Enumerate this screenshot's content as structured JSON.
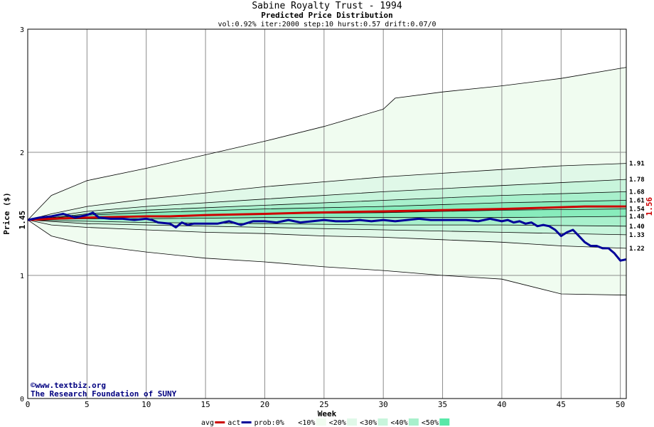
{
  "chart_data": {
    "type": "area",
    "title": "Sabine Royalty Trust - 1994",
    "subtitle": "Predicted Price Distribution",
    "params": "vol:0.92% iter:2000 step:10 hurst:0.57 drift:0.07/0",
    "xlabel": "Week",
    "ylabel": "Price ($)",
    "xlim": [
      0,
      50.5
    ],
    "ylim": [
      0,
      3
    ],
    "x_ticks": [
      0,
      5,
      10,
      15,
      20,
      25,
      30,
      35,
      40,
      45,
      50
    ],
    "y_ticks": [
      0,
      1,
      2,
      3
    ],
    "grid": true,
    "start_label": "1.45",
    "end_label": "1.56",
    "band_colors": [
      "#f0fcf0",
      "#e0f8e8",
      "#c8f5dc",
      "#a8f0cc",
      "#88ecbc",
      "#58e8a8"
    ],
    "quantile_lines": [
      {
        "w": [
          0,
          2,
          5,
          10,
          15,
          20,
          25,
          30,
          35,
          40,
          45,
          50.5
        ],
        "v": [
          1.45,
          1.32,
          1.25,
          1.19,
          1.14,
          1.11,
          1.07,
          1.04,
          1.0,
          0.97,
          0.85,
          0.84
        ]
      },
      {
        "w": [
          0,
          2,
          5,
          10,
          15,
          20,
          25,
          30,
          35,
          40,
          45,
          50.5
        ],
        "v": [
          1.45,
          1.41,
          1.39,
          1.37,
          1.35,
          1.34,
          1.32,
          1.31,
          1.29,
          1.27,
          1.24,
          1.22
        ]
      },
      {
        "w": [
          0,
          5,
          10,
          20,
          30,
          40,
          50.5
        ],
        "v": [
          1.45,
          1.42,
          1.41,
          1.39,
          1.37,
          1.35,
          1.33
        ]
      },
      {
        "w": [
          0,
          5,
          10,
          20,
          30,
          40,
          50.5
        ],
        "v": [
          1.45,
          1.44,
          1.43,
          1.42,
          1.41,
          1.41,
          1.4
        ]
      },
      {
        "w": [
          0,
          5,
          10,
          20,
          30,
          40,
          50.5
        ],
        "v": [
          1.45,
          1.46,
          1.46,
          1.47,
          1.47,
          1.47,
          1.48
        ]
      },
      {
        "w": [
          0,
          5,
          10,
          20,
          30,
          40,
          50.5
        ],
        "v": [
          1.45,
          1.47,
          1.48,
          1.5,
          1.51,
          1.53,
          1.54
        ]
      },
      {
        "w": [
          0,
          5,
          10,
          20,
          30,
          40,
          50.5
        ],
        "v": [
          1.45,
          1.49,
          1.51,
          1.54,
          1.56,
          1.59,
          1.61
        ]
      },
      {
        "w": [
          0,
          5,
          10,
          20,
          30,
          40,
          50.5
        ],
        "v": [
          1.45,
          1.5,
          1.53,
          1.57,
          1.61,
          1.65,
          1.68
        ]
      },
      {
        "w": [
          0,
          5,
          10,
          20,
          30,
          40,
          50.5
        ],
        "v": [
          1.45,
          1.52,
          1.56,
          1.62,
          1.68,
          1.73,
          1.78
        ]
      },
      {
        "w": [
          0,
          2,
          5,
          10,
          15,
          20,
          25,
          30,
          35,
          40,
          45,
          50.5
        ],
        "v": [
          1.45,
          1.5,
          1.56,
          1.62,
          1.67,
          1.72,
          1.76,
          1.8,
          1.83,
          1.86,
          1.89,
          1.91
        ]
      },
      {
        "w": [
          0,
          2,
          5,
          10,
          15,
          20,
          25,
          30,
          31,
          35,
          40,
          45,
          50.5
        ],
        "v": [
          1.45,
          1.65,
          1.77,
          1.87,
          1.98,
          2.09,
          2.21,
          2.35,
          2.44,
          2.49,
          2.54,
          2.6,
          2.69
        ]
      }
    ],
    "right_labels": [
      "1.91",
      "1.78",
      "1.68",
      "1.61",
      "1.54",
      "1.48",
      "1.40",
      "1.33",
      "1.22"
    ],
    "right_label_values": [
      1.91,
      1.78,
      1.68,
      1.61,
      1.54,
      1.48,
      1.4,
      1.33,
      1.22
    ],
    "series": [
      {
        "name": "avg",
        "color": "#cc0000",
        "w": [
          0,
          2,
          5,
          10,
          12,
          15,
          20,
          24,
          30,
          35,
          40,
          44,
          47,
          50.5
        ],
        "v": [
          1.45,
          1.46,
          1.47,
          1.48,
          1.48,
          1.49,
          1.5,
          1.51,
          1.52,
          1.53,
          1.54,
          1.55,
          1.56,
          1.56
        ]
      },
      {
        "name": "act",
        "color": "#000099",
        "w": [
          0,
          1,
          2,
          3,
          4,
          5,
          5.5,
          6,
          7,
          8,
          9,
          10,
          10.5,
          11,
          12,
          12.5,
          13,
          13.5,
          14,
          15,
          16,
          17,
          18,
          19,
          20,
          21,
          22,
          23,
          24,
          25,
          26,
          27,
          28,
          29,
          30,
          31,
          32,
          33,
          34,
          35,
          36,
          37,
          38,
          39,
          40,
          40.5,
          41,
          41.5,
          42,
          42.5,
          43,
          43.5,
          44,
          44.5,
          45,
          45.5,
          46,
          46.5,
          47,
          47.5,
          48,
          48.5,
          49,
          49.5,
          50,
          50.5
        ],
        "v": [
          1.45,
          1.47,
          1.48,
          1.5,
          1.47,
          1.49,
          1.51,
          1.47,
          1.46,
          1.46,
          1.45,
          1.46,
          1.45,
          1.43,
          1.42,
          1.39,
          1.43,
          1.41,
          1.42,
          1.42,
          1.42,
          1.44,
          1.41,
          1.44,
          1.44,
          1.43,
          1.45,
          1.43,
          1.44,
          1.45,
          1.44,
          1.44,
          1.45,
          1.44,
          1.45,
          1.44,
          1.45,
          1.46,
          1.45,
          1.45,
          1.45,
          1.45,
          1.44,
          1.46,
          1.44,
          1.45,
          1.43,
          1.44,
          1.42,
          1.43,
          1.4,
          1.41,
          1.4,
          1.37,
          1.32,
          1.35,
          1.37,
          1.32,
          1.27,
          1.24,
          1.24,
          1.22,
          1.22,
          1.18,
          1.12,
          1.13
        ]
      }
    ],
    "legend": [
      {
        "label": "avg",
        "type": "line",
        "color": "#cc0000"
      },
      {
        "label": "act",
        "type": "line",
        "color": "#000099"
      },
      {
        "label": "prob:0%",
        "type": "swatch",
        "color": "#ffffff"
      },
      {
        "label": "<10%",
        "type": "swatch",
        "color": "#f0fcf0"
      },
      {
        "label": "<20%",
        "type": "swatch",
        "color": "#e0f8e8"
      },
      {
        "label": "<30%",
        "type": "swatch",
        "color": "#c8f5dc"
      },
      {
        "label": "<40%",
        "type": "swatch",
        "color": "#a8f0cc"
      },
      {
        "label": "<50%",
        "type": "swatch",
        "color": "#58e8a8"
      }
    ],
    "credits": [
      "©www.textbiz.org",
      "The Research Foundation of SUNY"
    ]
  }
}
